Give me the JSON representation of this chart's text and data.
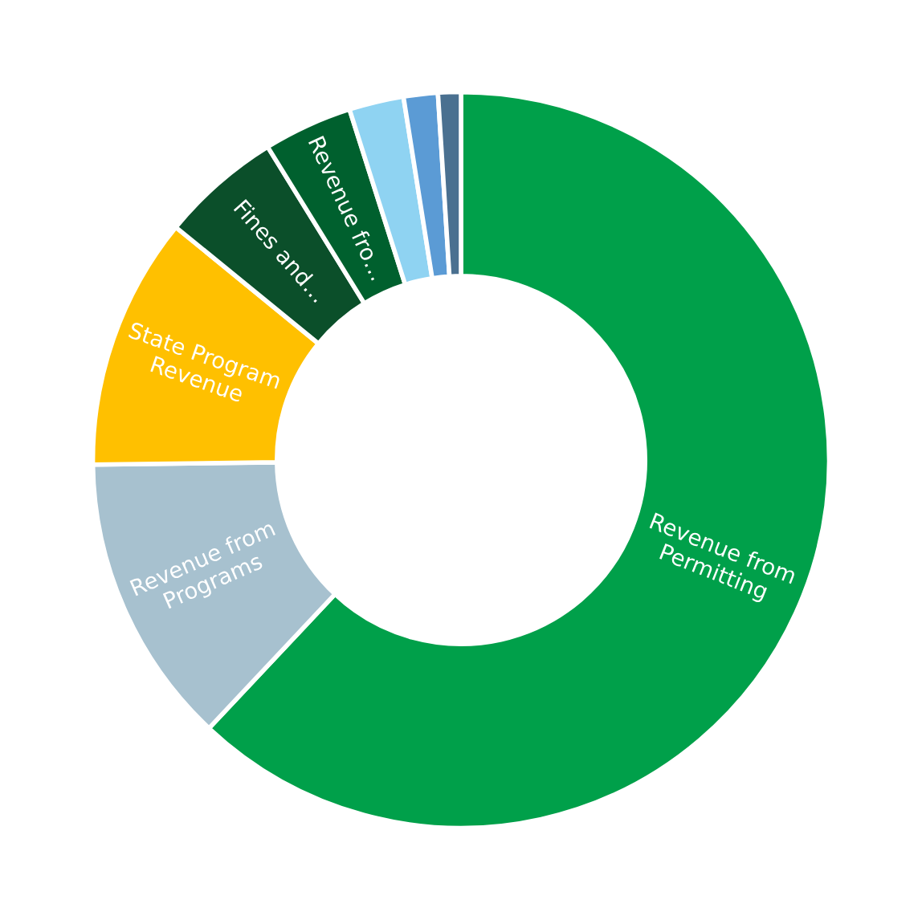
{
  "chart_data": {
    "type": "donut",
    "categories": [
      "Revenue from Permitting",
      "Revenue from Programs",
      "State Program Revenue",
      "Fines and…",
      "Revenue fro…",
      null,
      null,
      null
    ],
    "values": [
      62.0,
      12.8,
      11.1,
      5.3,
      3.9,
      2.4,
      1.5,
      1.0
    ],
    "colors": [
      "#00a04a",
      "#a7c1cf",
      "#ffc000",
      "#0b4f2a",
      "#00602e",
      "#8fd3f2",
      "#5b9bd5",
      "#4a7090"
    ],
    "legend": false
  }
}
